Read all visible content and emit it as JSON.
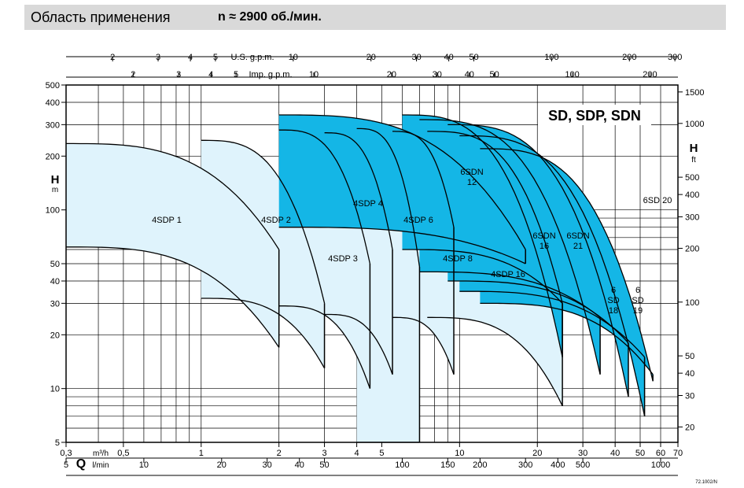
{
  "header": {
    "title": "Область применения",
    "speed": "n ≈ 2900 об./мин."
  },
  "chart_data": {
    "type": "area",
    "title": "SD, SDP, SDN",
    "x_axis": {
      "scale": "log",
      "label_q": "Q",
      "unit_m3h": "m³/h",
      "unit_lmin": "l/min",
      "m3h_ticks": [
        [
          "0,3",
          0.3
        ],
        [
          "0,5",
          0.5
        ],
        [
          "1",
          1
        ],
        [
          "2",
          2
        ],
        [
          "3",
          3
        ],
        [
          "4",
          4
        ],
        [
          "5",
          5
        ],
        [
          "10",
          10
        ],
        [
          "20",
          20
        ],
        [
          "30",
          30
        ],
        [
          "40",
          40
        ],
        [
          "50",
          50
        ],
        [
          "60",
          60
        ],
        [
          "70",
          70
        ]
      ],
      "lmin_ticks": [
        [
          "5",
          5
        ],
        [
          "10",
          10
        ],
        [
          "20",
          20
        ],
        [
          "30",
          30
        ],
        [
          "40",
          40
        ],
        [
          "50",
          50
        ],
        [
          "100",
          100
        ],
        [
          "150",
          150
        ],
        [
          "200",
          200
        ],
        [
          "300",
          300
        ],
        [
          "400",
          400
        ],
        [
          "500",
          500
        ],
        [
          "1000",
          1000
        ]
      ],
      "usgpm_label": "U.S. g.p.m.",
      "usgpm_ticks": [
        [
          "2",
          2
        ],
        [
          "3",
          3
        ],
        [
          "4",
          4
        ],
        [
          "5",
          5
        ],
        [
          "10",
          10
        ],
        [
          "20",
          20
        ],
        [
          "30",
          30
        ],
        [
          "40",
          40
        ],
        [
          "50",
          50
        ],
        [
          "100",
          100
        ],
        [
          "200",
          200
        ],
        [
          "300",
          300
        ]
      ],
      "impgpm_label": "Imp. g.p.m.",
      "impgpm_ticks": [
        [
          "2",
          2
        ],
        [
          "3",
          3
        ],
        [
          "4",
          4
        ],
        [
          "5",
          5
        ],
        [
          "10",
          10
        ],
        [
          "20",
          20
        ],
        [
          "30",
          30
        ],
        [
          "40",
          40
        ],
        [
          "50",
          50
        ],
        [
          "100",
          100
        ],
        [
          "200",
          200
        ]
      ]
    },
    "y_axis_left": {
      "label": "H",
      "unit": "m",
      "scale": "log",
      "range": [
        5,
        500
      ],
      "ticks": [
        [
          "5",
          5
        ],
        [
          "10",
          10
        ],
        [
          "20",
          20
        ],
        [
          "30",
          30
        ],
        [
          "40",
          40
        ],
        [
          "50",
          50
        ],
        [
          "100",
          100
        ],
        [
          "200",
          200
        ],
        [
          "300",
          300
        ],
        [
          "400",
          400
        ],
        [
          "500",
          500
        ]
      ]
    },
    "y_axis_right": {
      "label": "H",
      "unit": "ft",
      "scale": "log",
      "ticks": [
        [
          "20",
          20
        ],
        [
          "30",
          30
        ],
        [
          "40",
          40
        ],
        [
          "50",
          50
        ],
        [
          "100",
          100
        ],
        [
          "200",
          200
        ],
        [
          "300",
          300
        ],
        [
          "400",
          400
        ],
        [
          "500",
          500
        ],
        [
          "1000",
          1000
        ],
        [
          "1500",
          1500
        ]
      ]
    },
    "series": [
      {
        "name": "4SDP 1",
        "family": "SDP",
        "q_range_m3h": [
          0.3,
          2.0
        ],
        "h_top_m": [
          235,
          60
        ],
        "h_bottom_m": [
          62,
          17
        ]
      },
      {
        "name": "4SDP 2",
        "family": "SDP",
        "q_range_m3h": [
          1.0,
          3.0
        ],
        "h_top_m": [
          245,
          30
        ],
        "h_bottom_m": [
          32,
          13
        ]
      },
      {
        "name": "4SDP 3",
        "family": "SDP",
        "q_range_m3h": [
          2.0,
          4.5
        ],
        "h_top_m": [
          280,
          50
        ],
        "h_bottom_m": [
          29,
          10
        ]
      },
      {
        "name": "4SDP 4",
        "family": "SDP",
        "q_range_m3h": [
          3.0,
          5.5
        ],
        "h_top_m": [
          270,
          60
        ],
        "h_bottom_m": [
          26,
          12
        ]
      },
      {
        "name": "4SDP 6",
        "family": "SDP",
        "q_range_m3h": [
          4.0,
          7.0
        ],
        "h_top_m": [
          285,
          48
        ],
        "h_bottom_m": [
          5,
          5
        ]
      },
      {
        "name": "4SDP 8",
        "family": "SDP",
        "q_range_m3h": [
          5.5,
          9.5
        ],
        "h_top_m": [
          275,
          80
        ],
        "h_bottom_m": [
          25,
          12
        ]
      },
      {
        "name": "4SDP 16",
        "family": "SDP",
        "q_range_m3h": [
          7.5,
          25.0
        ],
        "h_top_m": [
          275,
          30
        ],
        "h_bottom_m": [
          25,
          8
        ]
      },
      {
        "name": "6SDN 12",
        "family": "SDN",
        "q_range_m3h": [
          2.0,
          18.0
        ],
        "h_top_m": [
          340,
          60
        ],
        "h_bottom_m": [
          80,
          50
        ]
      },
      {
        "name": "6SDN 16",
        "family": "SDN",
        "q_range_m3h": [
          6.0,
          25.0
        ],
        "h_top_m": [
          340,
          15
        ],
        "h_bottom_m": [
          60,
          30
        ]
      },
      {
        "name": "6SDN 21",
        "family": "SDN",
        "q_range_m3h": [
          7.0,
          35.0
        ],
        "h_top_m": [
          320,
          12
        ],
        "h_bottom_m": [
          45,
          25
        ]
      },
      {
        "name": "6 SD 18",
        "family": "SD",
        "q_range_m3h": [
          9.0,
          45.0
        ],
        "h_top_m": [
          300,
          9
        ],
        "h_bottom_m": [
          40,
          18
        ]
      },
      {
        "name": "6 SD 19",
        "family": "SD",
        "q_range_m3h": [
          10.0,
          52.0
        ],
        "h_top_m": [
          260,
          7
        ],
        "h_bottom_m": [
          35,
          15
        ]
      },
      {
        "name": "6SD 20",
        "family": "SD",
        "q_range_m3h": [
          12.0,
          56.0
        ],
        "h_top_m": [
          220,
          11
        ],
        "h_bottom_m": [
          30,
          12
        ]
      }
    ],
    "colors": {
      "sdp_fill": "#dff3fc",
      "sdn_fill": "#14b6e6",
      "title_bar": "#d9d9d9"
    },
    "footnote": "72.1002/N"
  }
}
